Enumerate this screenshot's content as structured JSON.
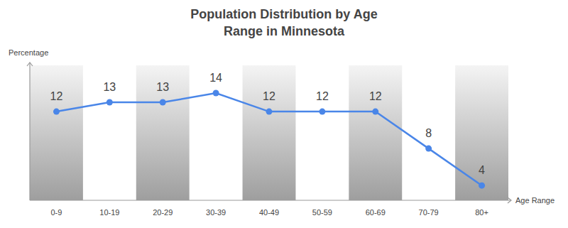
{
  "chart_data": {
    "type": "line",
    "title": "Population Distribution by Age Range in Minnesota",
    "x_label": "Age Range",
    "y_label": "Percentage",
    "categories": [
      "0-9",
      "10-19",
      "20-29",
      "30-39",
      "40-49",
      "50-59",
      "60-69",
      "70-79",
      "80+"
    ],
    "values": [
      12,
      13,
      13,
      14,
      12,
      12,
      12,
      8,
      4
    ],
    "color": "#4a86e8",
    "ylim": [
      2.4,
      17
    ],
    "tick_labels": "x",
    "data_labels": true,
    "marker": "circle"
  }
}
